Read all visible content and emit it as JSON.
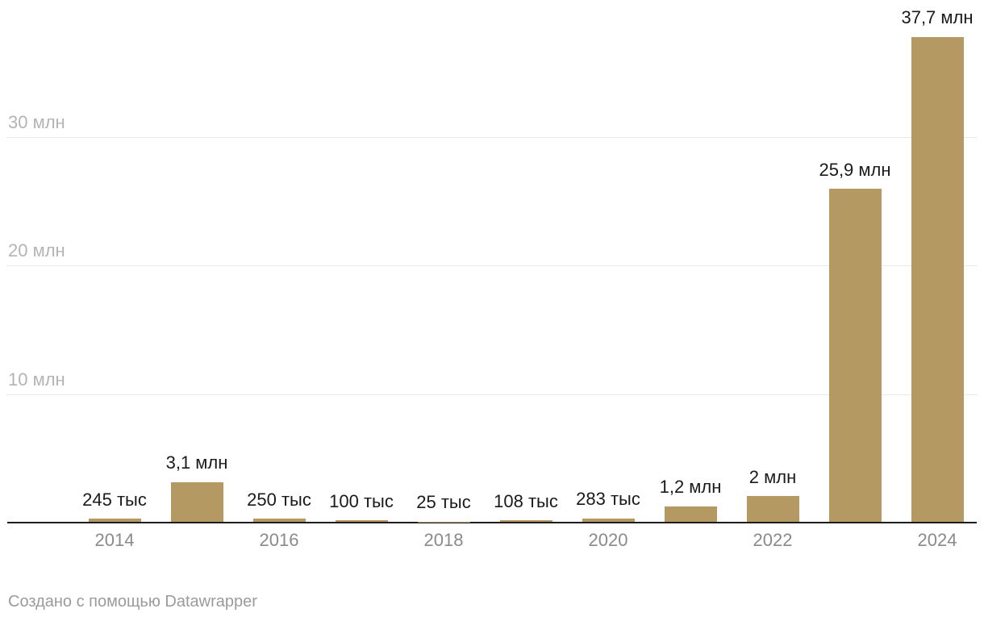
{
  "chart_data": {
    "type": "bar",
    "title": "",
    "xlabel": "",
    "ylabel": "",
    "categories": [
      "2014",
      "2015",
      "2016",
      "2017",
      "2018",
      "2019",
      "2020",
      "2021",
      "2022",
      "2023",
      "2024"
    ],
    "values": [
      0.245,
      3.1,
      0.25,
      0.1,
      0.025,
      0.108,
      0.283,
      1.2,
      2,
      25.9,
      37.7
    ],
    "unit": "млн",
    "data_labels": [
      "245 тыс",
      "3,1 млн",
      "250 тыс",
      "100 тыс",
      "25 тыс",
      "108 тыс",
      "283 тыс",
      "1,2 млн",
      "2 млн",
      "25,9 млн",
      "37,7 млн"
    ],
    "x_tick_labels": [
      "2014",
      "2016",
      "2018",
      "2020",
      "2022",
      "2024"
    ],
    "y_gridlines": [
      {
        "value": 10,
        "label": "10 млн"
      },
      {
        "value": 20,
        "label": "20 млн"
      },
      {
        "value": 30,
        "label": "30 млн"
      }
    ],
    "ylim": [
      0,
      40
    ],
    "grid": true,
    "legend": "none",
    "bar_color": "#b49963"
  },
  "colors": {
    "bar": "#b49963",
    "value_label": "#1a1a1a",
    "x_tick": "#8a8a8a",
    "y_tick": "#b4b4b4",
    "gridline": "#e9e9e9",
    "axis": "#1c1c1c",
    "footer": "#9b9b9b",
    "background": "#ffffff"
  },
  "footer": {
    "attribution": "Создано с помощью Datawrapper"
  }
}
